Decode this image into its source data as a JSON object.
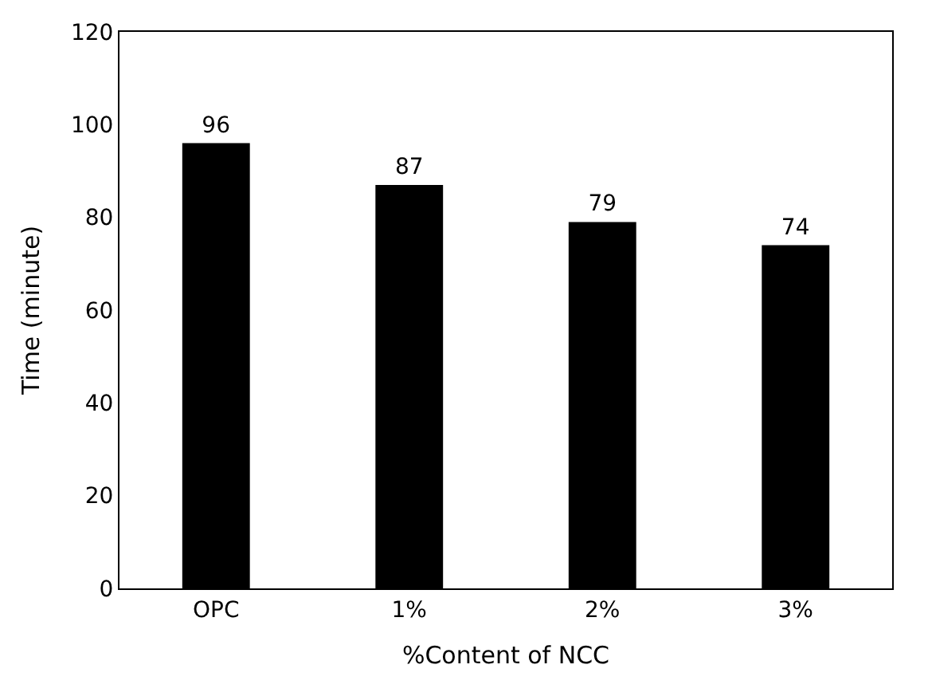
{
  "chart_data": {
    "type": "bar",
    "xlabel": "%Content of NCC",
    "ylabel": "Time (minute)",
    "categories": [
      "OPC",
      "1%",
      "2%",
      "3%"
    ],
    "values": [
      96,
      87,
      79,
      74
    ],
    "color": "#000000",
    "ylim": [
      0,
      120
    ],
    "yticks": [
      0,
      20,
      40,
      60,
      80,
      100,
      120
    ],
    "grid": false,
    "data_labels": true
  }
}
